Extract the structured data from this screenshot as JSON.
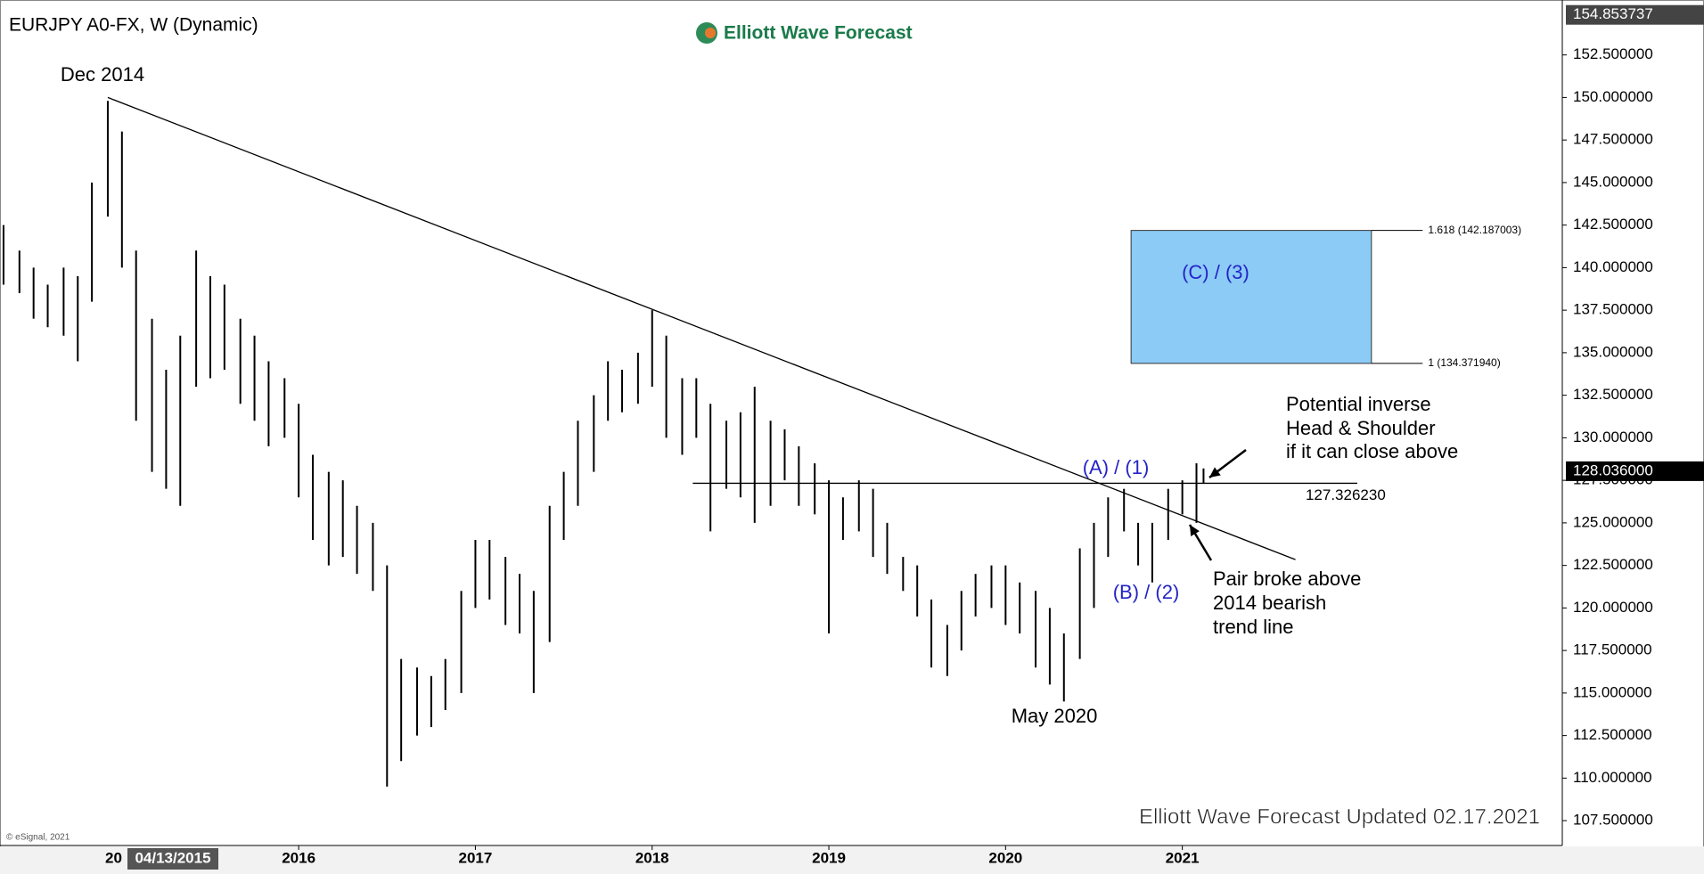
{
  "chart_data": {
    "type": "ohlc",
    "title": "EURJPY A0-FX, W (Dynamic)",
    "brand": "Elliott Wave Forecast",
    "footer": "Elliott Wave Forecast Updated 02.17.2021",
    "copyright": "© eSignal, 2021",
    "cursor_label": "04/13/2015",
    "cursor_prefix": "20",
    "xlim": [
      2014.31,
      2023.15
    ],
    "xticks": [
      2016,
      2017,
      2018,
      2019,
      2020,
      2021
    ],
    "ylim": [
      106.04,
      155.1
    ],
    "yticks": [
      {
        "value": 107.5,
        "label": "107.500000"
      },
      {
        "value": 110,
        "label": "110.000000"
      },
      {
        "value": 112.5,
        "label": "112.500000"
      },
      {
        "value": 115,
        "label": "115.000000"
      },
      {
        "value": 117.5,
        "label": "117.500000"
      },
      {
        "value": 120,
        "label": "120.000000"
      },
      {
        "value": 122.5,
        "label": "122.500000"
      },
      {
        "value": 125,
        "label": "125.000000"
      },
      {
        "value": 127.5,
        "label": "127.500000"
      },
      {
        "value": 130,
        "label": "130.000000"
      },
      {
        "value": 132.5,
        "label": "132.500000"
      },
      {
        "value": 135,
        "label": "135.000000"
      },
      {
        "value": 137.5,
        "label": "137.500000"
      },
      {
        "value": 140,
        "label": "140.000000"
      },
      {
        "value": 142.5,
        "label": "142.500000"
      },
      {
        "value": 145,
        "label": "145.000000"
      },
      {
        "value": 147.5,
        "label": "147.500000"
      },
      {
        "value": 150,
        "label": "150.000000"
      },
      {
        "value": 152.5,
        "label": "152.500000"
      }
    ],
    "high_price": {
      "value": 154.853737,
      "label": "154.853737"
    },
    "last_price": {
      "value": 128.036,
      "label": "128.036000"
    },
    "x": [
      2014.33,
      2014.42,
      2014.5,
      2014.58,
      2014.67,
      2014.75,
      2014.83,
      2014.92,
      2015.0,
      2015.08,
      2015.17,
      2015.25,
      2015.33,
      2015.42,
      2015.5,
      2015.58,
      2015.67,
      2015.75,
      2015.83,
      2015.92,
      2016.0,
      2016.08,
      2016.17,
      2016.25,
      2016.33,
      2016.42,
      2016.5,
      2016.58,
      2016.67,
      2016.75,
      2016.83,
      2016.92,
      2017.0,
      2017.08,
      2017.17,
      2017.25,
      2017.33,
      2017.42,
      2017.5,
      2017.58,
      2017.67,
      2017.75,
      2017.83,
      2017.92,
      2018.0,
      2018.08,
      2018.17,
      2018.25,
      2018.33,
      2018.42,
      2018.5,
      2018.58,
      2018.67,
      2018.75,
      2018.83,
      2018.92,
      2019.0,
      2019.08,
      2019.17,
      2019.25,
      2019.33,
      2019.42,
      2019.5,
      2019.58,
      2019.67,
      2019.75,
      2019.83,
      2019.92,
      2020.0,
      2020.08,
      2020.17,
      2020.25,
      2020.33,
      2020.42,
      2020.5,
      2020.58,
      2020.67,
      2020.75,
      2020.83,
      2020.92,
      2021.0,
      2021.08,
      2021.12
    ],
    "high": [
      142.5,
      141,
      140,
      139,
      140,
      139.5,
      145,
      149.8,
      148,
      141,
      137,
      134,
      136,
      141,
      139.5,
      139,
      137,
      136,
      134.5,
      133.5,
      132,
      129,
      128,
      127.5,
      126,
      125,
      122.5,
      117,
      116.5,
      116,
      117,
      121,
      124,
      124,
      123,
      122,
      121,
      126,
      128,
      131,
      132.5,
      134.5,
      134,
      135,
      137.5,
      136,
      133.5,
      133.5,
      132,
      131,
      131.5,
      133,
      131,
      130.5,
      129.5,
      128.5,
      127.5,
      126.5,
      127.5,
      127,
      125,
      123,
      122.5,
      120.5,
      119,
      121,
      122,
      122.5,
      122.5,
      121.5,
      121,
      120,
      118.5,
      123.5,
      125,
      126.5,
      127,
      125,
      125,
      127,
      127.5,
      128.5,
      128.2
    ],
    "low": [
      139,
      138.5,
      137,
      136.5,
      136,
      134.5,
      138,
      143,
      140,
      131,
      128,
      127,
      126,
      133,
      133.5,
      134,
      132,
      131,
      129.5,
      130,
      126.5,
      124,
      122.5,
      123,
      122,
      121,
      109.5,
      111,
      112.5,
      113,
      114,
      115,
      120,
      120.5,
      119,
      118.5,
      115,
      118,
      124,
      126,
      128,
      131,
      131.5,
      132,
      133,
      130,
      129,
      130,
      124.5,
      127,
      126.5,
      125,
      126,
      127.5,
      126,
      125.5,
      118.5,
      124,
      124.5,
      123,
      122,
      121,
      119.5,
      116.5,
      116,
      117.5,
      119.5,
      120,
      119,
      118.5,
      116.5,
      115.5,
      114.5,
      117,
      120,
      123,
      124.5,
      122.5,
      121.5,
      124,
      125.5,
      125,
      127.3
    ],
    "trend_line": {
      "x": [
        2014.92,
        2021.64
      ],
      "y": [
        150,
        122.84
      ]
    },
    "neckline": {
      "x": [
        2018.23,
        2021.99
      ],
      "y": [
        127.32623,
        127.32623
      ],
      "label": "127.326230"
    },
    "target_box": {
      "x": [
        2020.71,
        2022.07
      ],
      "line_end": 2022.36,
      "top": 142.187003,
      "bottom": 134.37194,
      "top_label": "1.618 (142.187003)",
      "bottom_label": "1 (134.371940)",
      "label": "(C) / (3)"
    },
    "annotations": [
      "Dec 2014",
      "May 2020",
      "(A) / (1)",
      "(B) / (2)",
      "Potential inverse",
      "Head & Shoulder",
      "if it can close above",
      "Pair broke above",
      "2014 bearish",
      "trend line"
    ]
  }
}
